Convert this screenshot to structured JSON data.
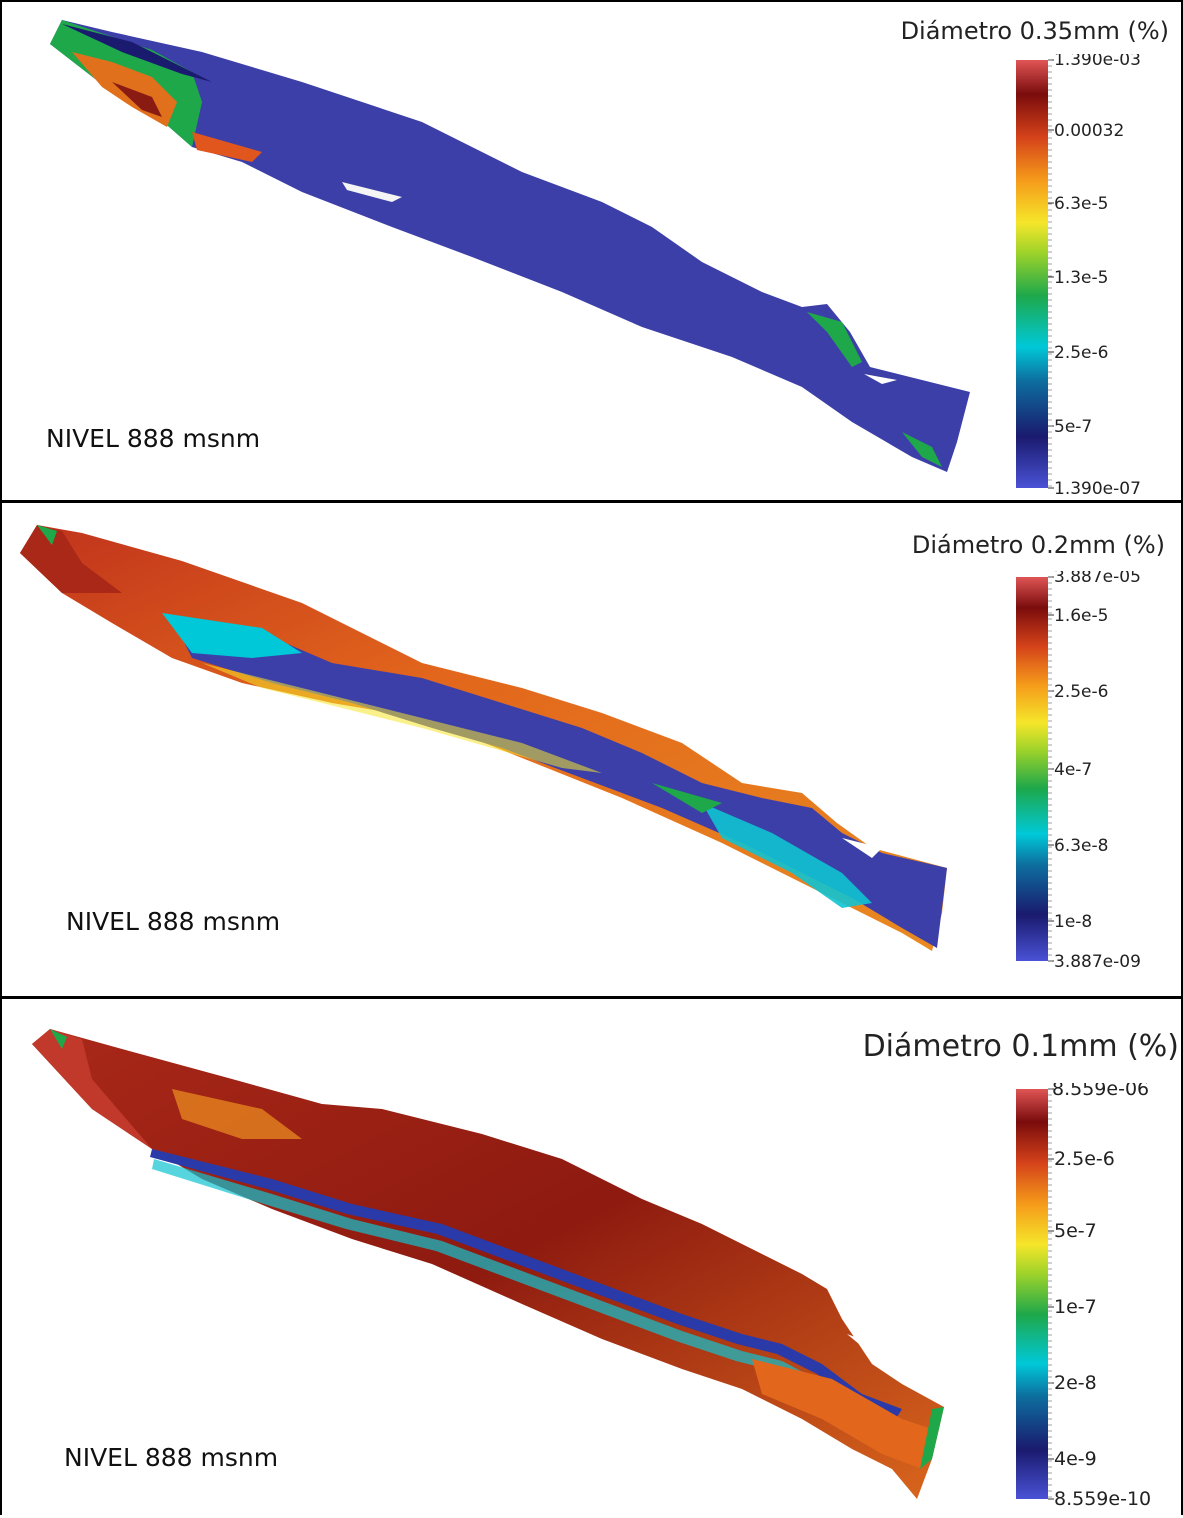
{
  "panels": [
    {
      "title": "Diámetro 0.35mm (%)",
      "level_label": "NIVEL 888 msnm",
      "ticks": [
        "1.390e-03",
        "0.00032",
        "6.3e-5",
        "1.3e-5",
        "2.5e-6",
        "5e-7",
        "1.390e-07"
      ]
    },
    {
      "title": "Diámetro 0.2mm (%)",
      "level_label": "NIVEL 888 msnm",
      "ticks": [
        "3.887e-05",
        "1.6e-5",
        "2.5e-6",
        "4e-7",
        "6.3e-8",
        "1e-8",
        "3.887e-09"
      ]
    },
    {
      "title": "Diámetro 0.1mm (%)",
      "level_label": "NIVEL 888 msnm",
      "ticks": [
        "8.559e-06",
        "2.5e-6",
        "5e-7",
        "1e-7",
        "2e-8",
        "4e-9",
        "8.559e-10"
      ]
    }
  ],
  "colors": {
    "colormap": [
      "#3b4cc0",
      "#1a1a6e",
      "#0d6e9e",
      "#00c8d8",
      "#1ea84a",
      "#7fcf2a",
      "#f5e62a",
      "#f59a1a",
      "#e0561c",
      "#8c0f0f",
      "#d04848"
    ],
    "river_blue": "#3d3fa8",
    "river_orange": "#e0701c",
    "river_darkred": "#8a1b12"
  }
}
